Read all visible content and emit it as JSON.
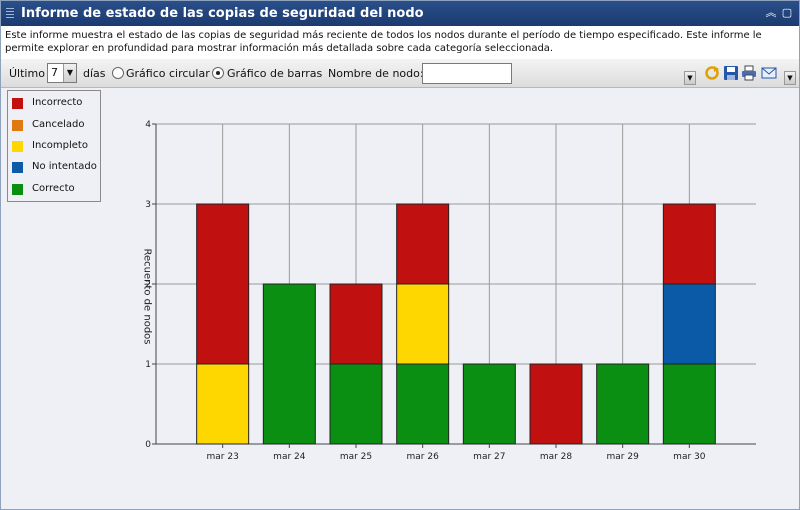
{
  "window": {
    "title": "Informe de estado de las copias de seguridad del nodo",
    "collapse_icon": "double-chevron-up-icon",
    "maximize_icon": "maximize-icon"
  },
  "description": "Este informe muestra el estado de las copias de seguridad más reciente de todos los nodos durante el período de tiempo especificado. Este informe le permite explorar en profundidad para mostrar información más detallada sobre cada categoría seleccionada.",
  "toolbar": {
    "last_label": "Último",
    "days_value": "7",
    "days_label": "días",
    "pie_label": "Gráfico circular",
    "bar_label": "Gráfico de barras",
    "selected_chart": "bar",
    "node_name_label": "Nombre de nodo:",
    "node_name_value": "",
    "icons": [
      "refresh-icon",
      "save-icon",
      "print-icon",
      "email-icon"
    ]
  },
  "legend": [
    {
      "label": "Incorrecto",
      "color": "#c01010"
    },
    {
      "label": "Cancelado",
      "color": "#e07a10"
    },
    {
      "label": "Incompleto",
      "color": "#ffd700"
    },
    {
      "label": "No intentado",
      "color": "#0b5aa8"
    },
    {
      "label": "Correcto",
      "color": "#0a8f12"
    }
  ],
  "chart_data": {
    "type": "bar",
    "stacked": true,
    "ylabel": "Recuento de nodos",
    "ylim": [
      0,
      4
    ],
    "yticks": [
      0,
      1,
      2,
      3,
      4
    ],
    "grid": true,
    "categories": [
      "mar 23",
      "mar 24",
      "mar 25",
      "mar 26",
      "mar 27",
      "mar 28",
      "mar 29",
      "mar 30"
    ],
    "series": [
      {
        "name": "Correcto",
        "color": "#0a8f12",
        "values": [
          0,
          2,
          1,
          1,
          1,
          0,
          1,
          1
        ]
      },
      {
        "name": "No intentado",
        "color": "#0b5aa8",
        "values": [
          0,
          0,
          0,
          0,
          0,
          0,
          0,
          1
        ]
      },
      {
        "name": "Incompleto",
        "color": "#ffd700",
        "values": [
          1,
          0,
          0,
          1,
          0,
          0,
          0,
          0
        ]
      },
      {
        "name": "Cancelado",
        "color": "#e07a10",
        "values": [
          0,
          0,
          0,
          0,
          0,
          0,
          0,
          0
        ]
      },
      {
        "name": "Incorrecto",
        "color": "#c01010",
        "values": [
          2,
          0,
          1,
          1,
          0,
          1,
          0,
          1
        ]
      }
    ]
  }
}
